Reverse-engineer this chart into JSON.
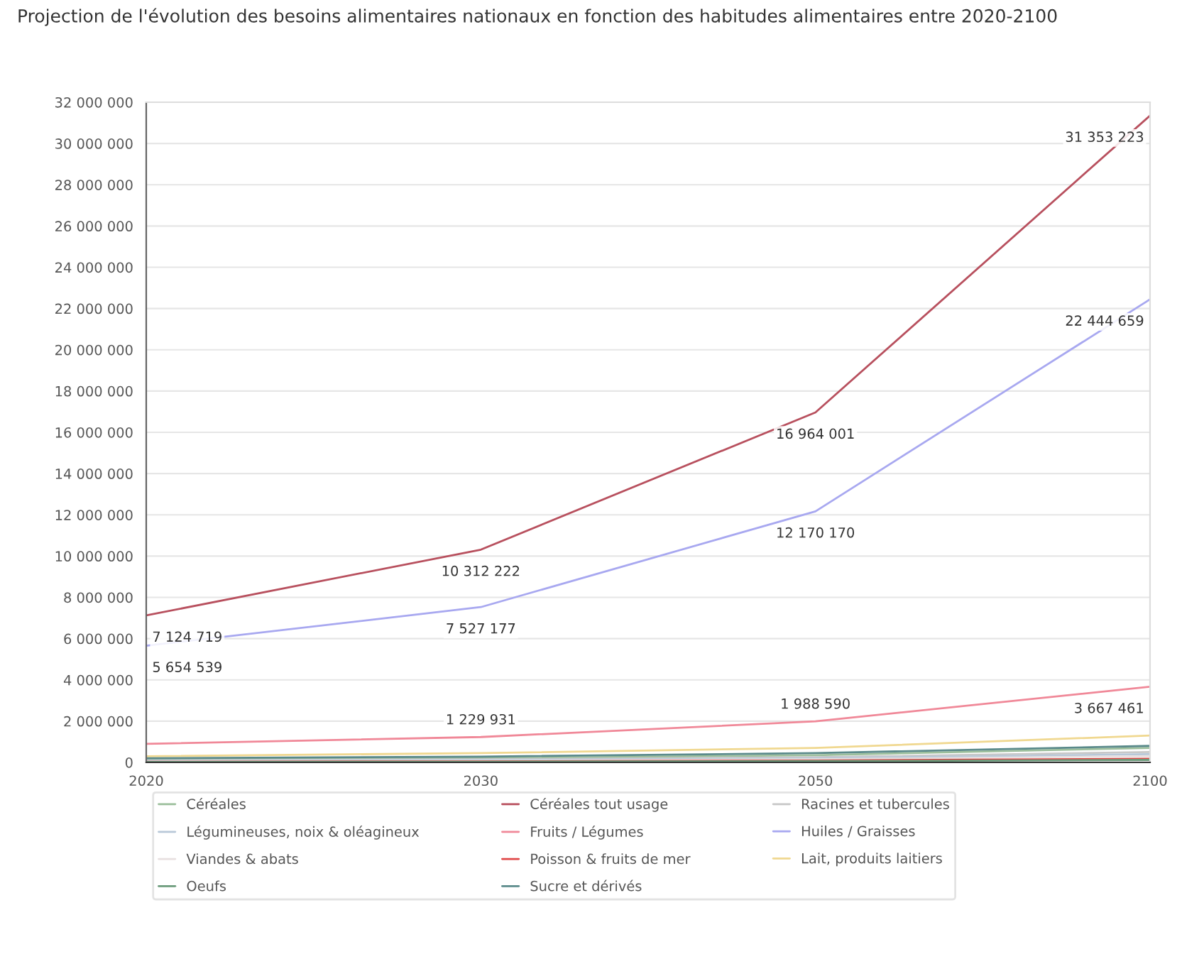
{
  "chart_data": {
    "type": "line",
    "title": "Projection de l'évolution des besoins alimentaires nationaux en fonction des habitudes alimentaires entre 2020-2100",
    "categories": [
      "2020",
      "2030",
      "2050",
      "2100"
    ],
    "series": [
      {
        "name": "Céréales",
        "color": "#9cbf9c",
        "values": [
          150000,
          200000,
          350000,
          700000
        ]
      },
      {
        "name": "Céréales tout usage",
        "color": "#b8505e",
        "values": [
          7124719,
          10312222,
          16964001,
          31353223
        ],
        "value_labels": [
          "7 124 719",
          "10 312 222",
          "16 964 001",
          "31 353 223"
        ]
      },
      {
        "name": "Racines et tubercules",
        "color": "#c8c8c8",
        "values": [
          100000,
          150000,
          250000,
          500000
        ]
      },
      {
        "name": "Légumineuses, noix & oléagineux",
        "color": "#b8c8d8",
        "values": [
          80000,
          120000,
          200000,
          400000
        ]
      },
      {
        "name": "Fruits / Légumes",
        "color": "#f08898",
        "values": [
          900000,
          1229931,
          1988590,
          3667461
        ],
        "value_labels": [
          null,
          "1 229 931",
          "1 988 590",
          "3 667 461"
        ]
      },
      {
        "name": "Huiles / Graisses",
        "color": "#a8a8f0",
        "values": [
          5654539,
          7527177,
          12170170,
          22444659
        ],
        "value_labels": [
          "5 654 539",
          "7 527 177",
          "12 170 170",
          "22 444 659"
        ]
      },
      {
        "name": "Viandes & abats",
        "color": "#e8e0e0",
        "values": [
          50000,
          80000,
          150000,
          300000
        ]
      },
      {
        "name": "Poisson & fruits de mer",
        "color": "#e04848",
        "values": [
          30000,
          50000,
          90000,
          180000
        ]
      },
      {
        "name": "Lait, produits laitiers",
        "color": "#f0d890",
        "values": [
          300000,
          450000,
          700000,
          1300000
        ]
      },
      {
        "name": "Oeufs",
        "color": "#6a9a7a",
        "values": [
          20000,
          30000,
          60000,
          120000
        ]
      },
      {
        "name": "Sucre et dérivés",
        "color": "#5a8a8a",
        "values": [
          200000,
          280000,
          450000,
          800000
        ]
      }
    ],
    "ylim": [
      0,
      32000000
    ],
    "yticks": [
      {
        "value": 0,
        "label": "0"
      },
      {
        "value": 2000000,
        "label": "2 000 000"
      },
      {
        "value": 4000000,
        "label": "4 000 000"
      },
      {
        "value": 6000000,
        "label": "6 000 000"
      },
      {
        "value": 8000000,
        "label": "8 000 000"
      },
      {
        "value": 10000000,
        "label": "10 000 000"
      },
      {
        "value": 12000000,
        "label": "12 000 000"
      },
      {
        "value": 14000000,
        "label": "14 000 000"
      },
      {
        "value": 16000000,
        "label": "16 000 000"
      },
      {
        "value": 18000000,
        "label": "18 000 000"
      },
      {
        "value": 20000000,
        "label": "20 000 000"
      },
      {
        "value": 22000000,
        "label": "22 000 000"
      },
      {
        "value": 24000000,
        "label": "24 000 000"
      },
      {
        "value": 26000000,
        "label": "26 000 000"
      },
      {
        "value": 28000000,
        "label": "28 000 000"
      },
      {
        "value": 30000000,
        "label": "30 000 000"
      },
      {
        "value": 32000000,
        "label": "32 000 000"
      }
    ],
    "grid": "y",
    "legend": "bottom",
    "marker": "none",
    "line_style": "solid"
  }
}
